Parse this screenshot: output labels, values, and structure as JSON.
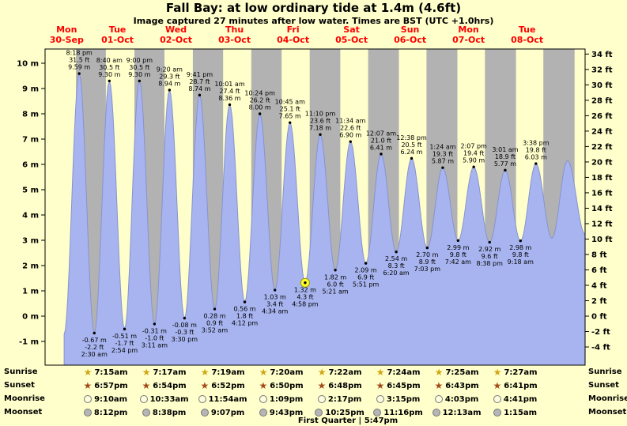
{
  "title": "Fall Bay: at low  ordinary tide at 1.4m (4.6ft)",
  "subtitle": "Image captured 27 minutes after low water. Times are BST (UTC +1.0hrs)",
  "colors": {
    "page_bg": "#ffffcb",
    "day_band": "#ffffcb",
    "night_band": "#b2b2b2",
    "tide_fill": "#a7b4ef",
    "tide_stroke": "#8793cf",
    "day_label": "#ff0000",
    "text": "#000000",
    "marker_fill": "#ffff2e",
    "marker_stroke": "#9a9a00",
    "icon_colors": {
      "star-light": "#cfa616",
      "star-dark": "#a34a1b",
      "circle-light": "#fcfcdf",
      "circle-dark": "#b5b5b5"
    }
  },
  "days": [
    {
      "name": "Mon",
      "date": "30-Sep"
    },
    {
      "name": "Tue",
      "date": "01-Oct"
    },
    {
      "name": "Wed",
      "date": "02-Oct"
    },
    {
      "name": "Thu",
      "date": "03-Oct"
    },
    {
      "name": "Fri",
      "date": "04-Oct"
    },
    {
      "name": "Sat",
      "date": "05-Oct"
    },
    {
      "name": "Sun",
      "date": "06-Oct"
    },
    {
      "name": "Mon",
      "date": "07-Oct"
    },
    {
      "name": "Tue",
      "date": "08-Oct"
    }
  ],
  "y_axis_left": {
    "labels": [
      "10 m",
      "9 m",
      "8 m",
      "7 m",
      "6 m",
      "5 m",
      "4 m",
      "3 m",
      "2 m",
      "1 m",
      "0 m",
      "-1 m"
    ],
    "values": [
      10,
      9,
      8,
      7,
      6,
      5,
      4,
      3,
      2,
      1,
      0,
      -1
    ]
  },
  "y_axis_right": {
    "labels": [
      "34 ft",
      "32 ft",
      "30 ft",
      "28 ft",
      "26 ft",
      "24 ft",
      "22 ft",
      "20 ft",
      "18 ft",
      "16 ft",
      "14 ft",
      "12 ft",
      "10 ft",
      "8 ft",
      "6 ft",
      "4 ft",
      "2 ft",
      "0 ft",
      "-2 ft",
      "-4 ft"
    ],
    "values": [
      34,
      32,
      30,
      28,
      26,
      24,
      22,
      20,
      18,
      16,
      14,
      12,
      10,
      8,
      6,
      4,
      2,
      0,
      -2,
      -4
    ]
  },
  "chart_data": {
    "type": "area",
    "title": "Fall Bay tide curve 30-Sep to 08-Oct",
    "ylabel_left": "meters",
    "ylabel_right": "feet",
    "ylim_m": [
      -1.94,
      10.56
    ],
    "x_range_hours": [
      6.3,
      227.8
    ],
    "extremes": [
      {
        "kind": "low",
        "t": 14.1,
        "v": -0.72
      },
      {
        "kind": "high",
        "t": 20.3,
        "v": 9.59,
        "time": "8:18 pm",
        "ft": "31.5 ft",
        "m": "9.59 m"
      },
      {
        "kind": "low",
        "t": 26.5,
        "v": -0.67,
        "m": "-0.67 m",
        "ft": "-2.2 ft",
        "time": "2:30 am"
      },
      {
        "kind": "high",
        "t": 32.67,
        "v": 9.3,
        "time": "8:40 am",
        "ft": "30.5 ft",
        "m": "9.30 m"
      },
      {
        "kind": "low",
        "t": 38.9,
        "v": -0.51,
        "m": "-0.51 m",
        "ft": "-1.7 ft",
        "time": "2:54 pm"
      },
      {
        "kind": "high",
        "t": 45.0,
        "v": 9.3,
        "time": "9:00 pm",
        "ft": "30.5 ft",
        "m": "9.30 m"
      },
      {
        "kind": "low",
        "t": 51.18,
        "v": -0.31,
        "m": "-0.31 m",
        "ft": "-1.0 ft",
        "time": "3:11 am"
      },
      {
        "kind": "high",
        "t": 57.33,
        "v": 8.94,
        "time": "9:20 am",
        "ft": "29.3 ft",
        "m": "8.94 m"
      },
      {
        "kind": "low",
        "t": 63.5,
        "v": -0.08,
        "m": "-0.08 m",
        "ft": "-0.3 ft",
        "time": "3:30 pm"
      },
      {
        "kind": "high",
        "t": 69.68,
        "v": 8.74,
        "time": "9:41 pm",
        "ft": "28.7 ft",
        "m": "8.74 m"
      },
      {
        "kind": "low",
        "t": 75.87,
        "v": 0.28,
        "m": "0.28 m",
        "ft": "0.9 ft",
        "time": "3:52 am"
      },
      {
        "kind": "high",
        "t": 82.02,
        "v": 8.36,
        "time": "10:01 am",
        "ft": "27.4 ft",
        "m": "8.36 m"
      },
      {
        "kind": "low",
        "t": 88.2,
        "v": 0.56,
        "m": "0.56 m",
        "ft": "1.8 ft",
        "time": "4:12 pm"
      },
      {
        "kind": "high",
        "t": 94.4,
        "v": 8.0,
        "time": "10:24 pm",
        "ft": "26.2 ft",
        "m": "8.00 m"
      },
      {
        "kind": "low",
        "t": 100.57,
        "v": 1.03,
        "m": "1.03 m",
        "ft": "3.4 ft",
        "time": "4:34 am"
      },
      {
        "kind": "high",
        "t": 106.75,
        "v": 7.65,
        "time": "10:45 am",
        "ft": "25.1 ft",
        "m": "7.65 m"
      },
      {
        "kind": "low",
        "t": 112.97,
        "v": 1.32,
        "m": "1.32 m",
        "ft": "4.3 ft",
        "time": "4:58 pm",
        "current": true
      },
      {
        "kind": "high",
        "t": 119.17,
        "v": 7.18,
        "time": "11:10 pm",
        "ft": "23.6 ft",
        "m": "7.18 m"
      },
      {
        "kind": "low",
        "t": 125.35,
        "v": 1.82,
        "m": "1.82 m",
        "ft": "6.0 ft",
        "time": "5:21 am"
      },
      {
        "kind": "high",
        "t": 131.57,
        "v": 6.9,
        "time": "11:34 am",
        "ft": "22.6 ft",
        "m": "6.90 m"
      },
      {
        "kind": "low",
        "t": 137.85,
        "v": 2.09,
        "m": "2.09 m",
        "ft": "6.9 ft",
        "time": "5:51 pm"
      },
      {
        "kind": "high",
        "t": 144.12,
        "v": 6.41,
        "time": "12:07 am",
        "ft": "21.0 ft",
        "m": "6.41 m"
      },
      {
        "kind": "low",
        "t": 150.33,
        "v": 2.54,
        "m": "2.54 m",
        "ft": "8.3 ft",
        "time": "6:20 am"
      },
      {
        "kind": "high",
        "t": 156.63,
        "v": 6.24,
        "time": "12:38 pm",
        "ft": "20.5 ft",
        "m": "6.24 m"
      },
      {
        "kind": "low",
        "t": 163.05,
        "v": 2.7,
        "m": "2.70 m",
        "ft": "8.9 ft",
        "time": "7:03 pm"
      },
      {
        "kind": "high",
        "t": 169.4,
        "v": 5.87,
        "time": "1:24 am",
        "ft": "19.3 ft",
        "m": "5.87 m"
      },
      {
        "kind": "low",
        "t": 175.7,
        "v": 2.99,
        "m": "2.99 m",
        "ft": "9.8 ft",
        "time": "7:42 am"
      },
      {
        "kind": "high",
        "t": 182.12,
        "v": 5.9,
        "time": "2:07 pm",
        "ft": "19.4 ft",
        "m": "5.90 m"
      },
      {
        "kind": "low",
        "t": 188.63,
        "v": 2.92,
        "m": "2.92 m",
        "ft": "9.6 ft",
        "time": "8:38 pm"
      },
      {
        "kind": "high",
        "t": 195.02,
        "v": 5.77,
        "time": "3:01 am",
        "ft": "18.9 ft",
        "m": "5.77 m"
      },
      {
        "kind": "low",
        "t": 201.3,
        "v": 2.98,
        "m": "2.98 m",
        "ft": "9.8 ft",
        "time": "9:18 am"
      },
      {
        "kind": "high",
        "t": 207.63,
        "v": 6.03,
        "time": "3:38 pm",
        "ft": "19.8 ft",
        "m": "6.03 m"
      },
      {
        "kind": "low",
        "t": 214.2,
        "v": 3.08
      },
      {
        "kind": "high",
        "t": 220.6,
        "v": 6.15
      },
      {
        "kind": "low",
        "t": 227.8,
        "v": 3.25
      }
    ],
    "sunrise_h": [
      7.22,
      7.25,
      7.28,
      7.32,
      7.33,
      7.37,
      7.4,
      7.42,
      7.45,
      7.48
    ],
    "sunset_h": [
      18.98,
      18.95,
      18.9,
      18.87,
      18.83,
      18.8,
      18.75,
      18.72,
      18.68,
      18.65
    ]
  },
  "astro": {
    "rows": [
      {
        "key": "sunrise",
        "label": "Sunrise",
        "icon": "star-light",
        "times": [
          "7:15am",
          "7:17am",
          "7:19am",
          "7:20am",
          "7:22am",
          "7:24am",
          "7:25am",
          "7:27am"
        ]
      },
      {
        "key": "sunset",
        "label": "Sunset",
        "icon": "star-dark",
        "times": [
          "6:57pm",
          "6:54pm",
          "6:52pm",
          "6:50pm",
          "6:48pm",
          "6:45pm",
          "6:43pm",
          "6:41pm"
        ]
      },
      {
        "key": "moonrise",
        "label": "Moonrise",
        "icon": "circle-light",
        "times": [
          "9:10am",
          "10:33am",
          "11:54am",
          "1:09pm",
          "2:17pm",
          "3:15pm",
          "4:03pm",
          "4:41pm"
        ]
      },
      {
        "key": "moonset",
        "label": "Moonset",
        "icon": "circle-dark",
        "times": [
          "8:12pm",
          "8:38pm",
          "9:07pm",
          "9:43pm",
          "10:25pm",
          "11:16pm",
          "12:13am",
          "1:15am"
        ]
      }
    ],
    "footer": {
      "phase": "First Quarter",
      "separator": "|",
      "time": "5:47pm"
    }
  }
}
